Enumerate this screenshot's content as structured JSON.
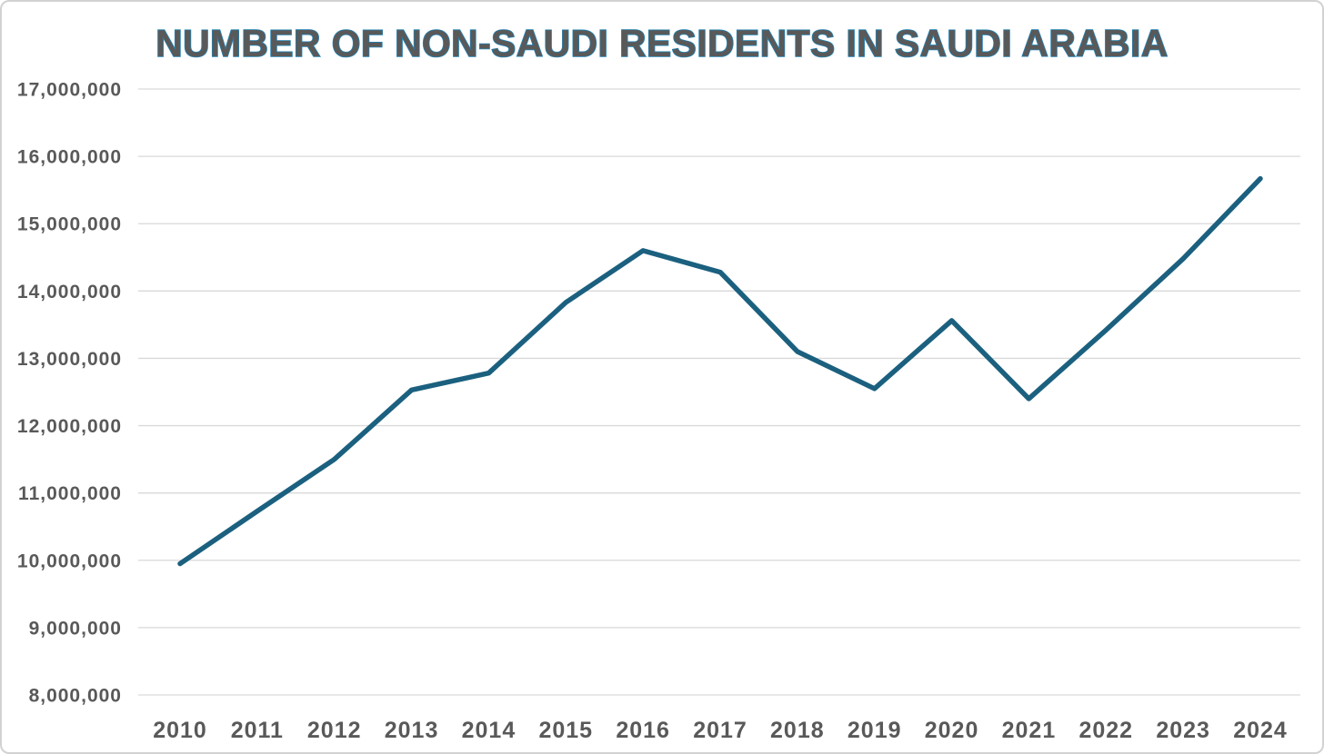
{
  "page": {
    "background": "#ffffff",
    "border_color": "#d2d2d2"
  },
  "chart_data": {
    "type": "line",
    "title": "NUMBER OF NON-SAUDI RESIDENTS IN SAUDI ARABIA",
    "xlabel": "",
    "ylabel": "",
    "x": [
      "2010",
      "2011",
      "2012",
      "2013",
      "2014",
      "2015",
      "2016",
      "2017",
      "2018",
      "2019",
      "2020",
      "2021",
      "2022",
      "2023",
      "2024"
    ],
    "series": [
      {
        "name": "Non-Saudi residents",
        "values": [
          9950000,
          10730000,
          11500000,
          12530000,
          12780000,
          13830000,
          14600000,
          14280000,
          13100000,
          12550000,
          13560000,
          12400000,
          13420000,
          14480000,
          15670000
        ]
      }
    ],
    "ylim": [
      8000000,
      17000000
    ],
    "ytick_step": 1000000,
    "ytick_labels": [
      "8,000,000",
      "9,000,000",
      "10,000,000",
      "11,000,000",
      "12,000,000",
      "13,000,000",
      "14,000,000",
      "15,000,000",
      "16,000,000",
      "17,000,000"
    ],
    "grid": "horizontal",
    "legend_position": "none",
    "colors": {
      "line": "#1b607f",
      "labels": "#595959",
      "grid": "#d9d9d9",
      "title_fill": "#595959",
      "title_outline": "#2383b4"
    }
  }
}
